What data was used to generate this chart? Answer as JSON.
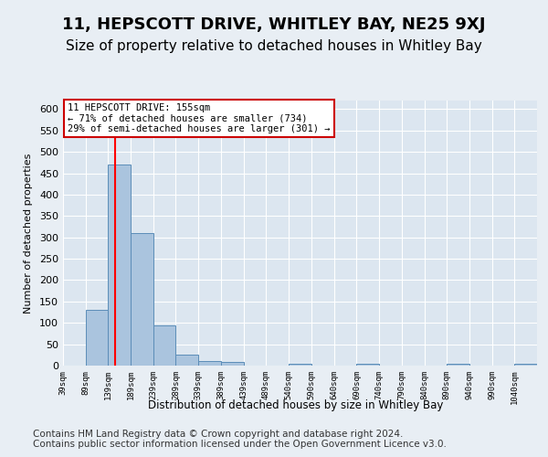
{
  "title": "11, HEPSCOTT DRIVE, WHITLEY BAY, NE25 9XJ",
  "subtitle": "Size of property relative to detached houses in Whitley Bay",
  "xlabel": "Distribution of detached houses by size in Whitley Bay",
  "ylabel": "Number of detached properties",
  "footnote1": "Contains HM Land Registry data © Crown copyright and database right 2024.",
  "footnote2": "Contains public sector information licensed under the Open Government Licence v3.0.",
  "annotation_line1": "11 HEPSCOTT DRIVE: 155sqm",
  "annotation_line2": "← 71% of detached houses are smaller (734)",
  "annotation_line3": "29% of semi-detached houses are larger (301) →",
  "bar_edges": [
    39,
    89,
    139,
    189,
    239,
    289,
    339,
    389,
    439,
    489,
    540,
    590,
    640,
    690,
    740,
    790,
    840,
    890,
    940,
    990,
    1040,
    1090
  ],
  "bar_heights": [
    0,
    130,
    470,
    310,
    95,
    25,
    10,
    8,
    0,
    0,
    5,
    0,
    0,
    5,
    0,
    0,
    0,
    5,
    0,
    0,
    5
  ],
  "tick_labels": [
    "39sqm",
    "89sqm",
    "139sqm",
    "189sqm",
    "239sqm",
    "289sqm",
    "339sqm",
    "389sqm",
    "439sqm",
    "489sqm",
    "540sqm",
    "590sqm",
    "640sqm",
    "690sqm",
    "740sqm",
    "790sqm",
    "840sqm",
    "890sqm",
    "940sqm",
    "990sqm",
    "1040sqm"
  ],
  "bar_color": "#aac4de",
  "bar_edge_color": "#5b8db8",
  "red_line_x": 155,
  "ylim": [
    0,
    620
  ],
  "yticks": [
    0,
    50,
    100,
    150,
    200,
    250,
    300,
    350,
    400,
    450,
    500,
    550,
    600
  ],
  "bg_color": "#e8eef4",
  "plot_bg_color": "#dce6f0",
  "annotation_box_color": "#ffffff",
  "annotation_box_edge": "#cc0000",
  "title_fontsize": 13,
  "subtitle_fontsize": 11,
  "footnote_fontsize": 7.5
}
